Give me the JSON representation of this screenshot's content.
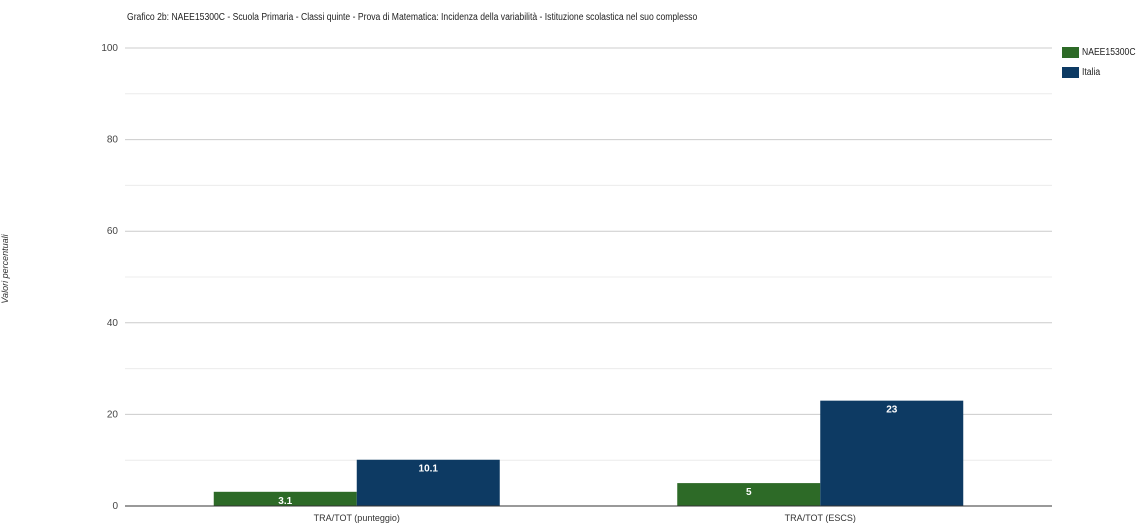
{
  "chart_data": {
    "type": "bar",
    "title": "Grafico 2b: NAEE15300C - Scuola Primaria - Classi quinte - Prova di Matematica: Incidenza della variabilità - Istituzione scolastica nel suo complesso",
    "ylabel": "Valori percentuali",
    "xlabel": "",
    "categories": [
      "TRA/TOT (punteggio)",
      "TRA/TOT (ESCS)"
    ],
    "ylim": [
      0,
      100
    ],
    "yticks": [
      0,
      20,
      40,
      60,
      80,
      100
    ],
    "grid": true,
    "legend": "top-right",
    "series": [
      {
        "name": "NAEE15300C",
        "color": "#2d6a27",
        "values": [
          3.1,
          5
        ],
        "labels": [
          "3.1",
          "5"
        ]
      },
      {
        "name": "Italia",
        "color": "#0d3a63",
        "values": [
          10.1,
          23
        ],
        "labels": [
          "10.1",
          "23"
        ]
      }
    ]
  }
}
